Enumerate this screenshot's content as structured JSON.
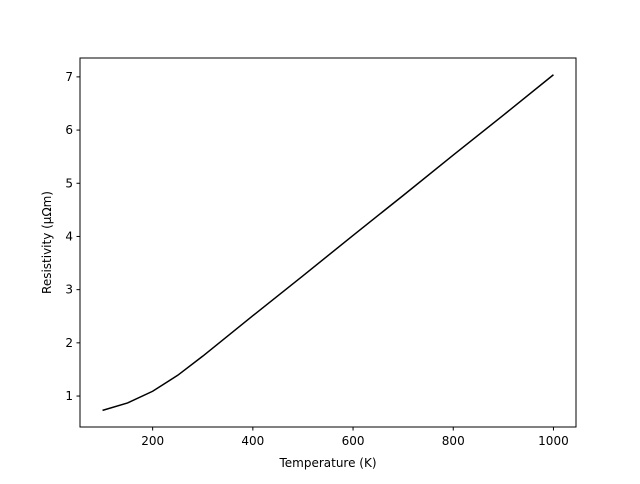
{
  "chart_data": {
    "type": "line",
    "xlabel": "Temperature (K)",
    "ylabel": "Resistivity (μΩm)",
    "x": [
      100,
      150,
      200,
      250,
      300,
      400,
      500,
      600,
      700,
      800,
      900,
      1000
    ],
    "series": [
      {
        "color": "#000000",
        "values": [
          0.73,
          0.87,
          1.09,
          1.39,
          1.75,
          2.51,
          3.26,
          4.02,
          4.77,
          5.53,
          6.28,
          7.04
        ]
      }
    ],
    "xlim": [
      55,
      1045
    ],
    "ylim": [
      0.418,
      7.355
    ],
    "xticks": [
      200,
      400,
      600,
      800,
      1000
    ],
    "yticks": [
      1,
      2,
      3,
      4,
      5,
      6,
      7
    ]
  }
}
